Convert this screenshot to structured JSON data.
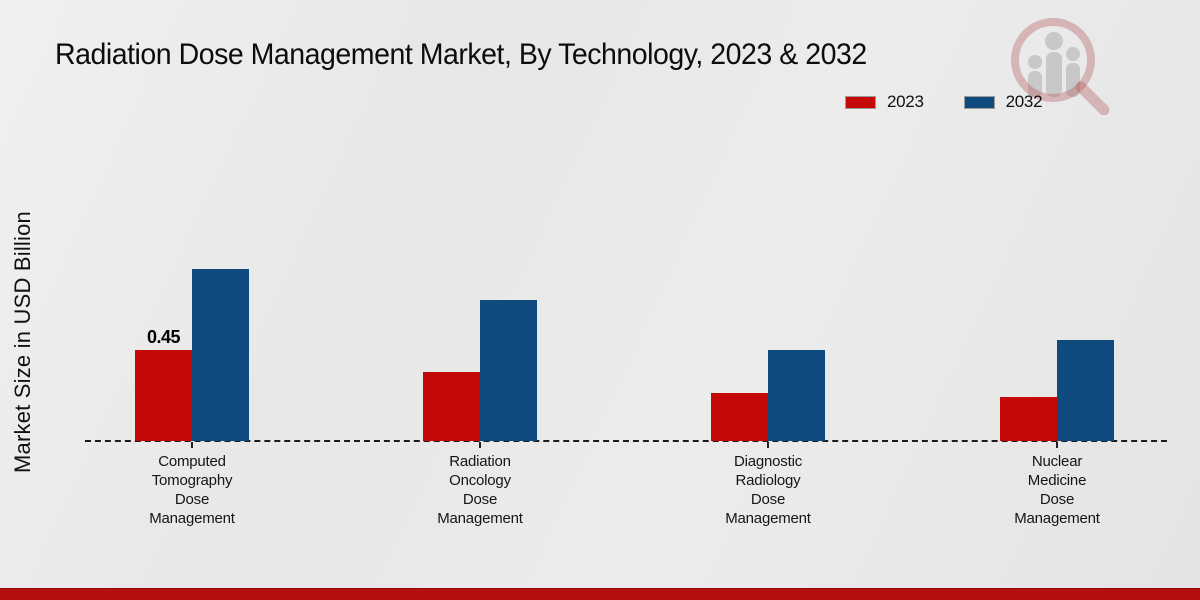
{
  "title": "Radiation Dose Management Market, By Technology, 2023 & 2032",
  "ylabel": "Market Size in USD Billion",
  "legend": {
    "items": [
      {
        "label": "2023",
        "color": "#c40707"
      },
      {
        "label": "2032",
        "color": "#0f4a7f"
      }
    ]
  },
  "colors": {
    "series_2023": "#c40707",
    "series_2032": "#0f4a7f",
    "footer_band": "#b50e0e",
    "baseline": "#1c1c1c",
    "background": "#e9e9e9"
  },
  "icons": {
    "watermark": "magnifier-bar-chart-logo"
  },
  "chart_data": {
    "type": "bar",
    "title": "Radiation Dose Management Market, By Technology, 2023 & 2032",
    "xlabel": "",
    "ylabel": "Market Size in USD Billion",
    "categories": [
      "Computed\nTomography\nDose\nManagement",
      "Radiation\nOncology\nDose\nManagement",
      "Diagnostic\nRadiology\nDose\nManagement",
      "Nuclear\nMedicine\nDose\nManagement"
    ],
    "series": [
      {
        "name": "2023",
        "color": "#c40707",
        "values": [
          0.45,
          0.34,
          0.24,
          0.22
        ],
        "labels": [
          "0.45",
          "",
          "",
          ""
        ]
      },
      {
        "name": "2032",
        "color": "#0f4a7f",
        "values": [
          0.85,
          0.7,
          0.45,
          0.5
        ],
        "labels": [
          "",
          "",
          "",
          ""
        ]
      }
    ],
    "ylim": [
      0,
      1.0
    ],
    "grid": false,
    "y_axis_ticks_visible": false,
    "baseline_style": "dashed",
    "legend_position": "top-right"
  }
}
